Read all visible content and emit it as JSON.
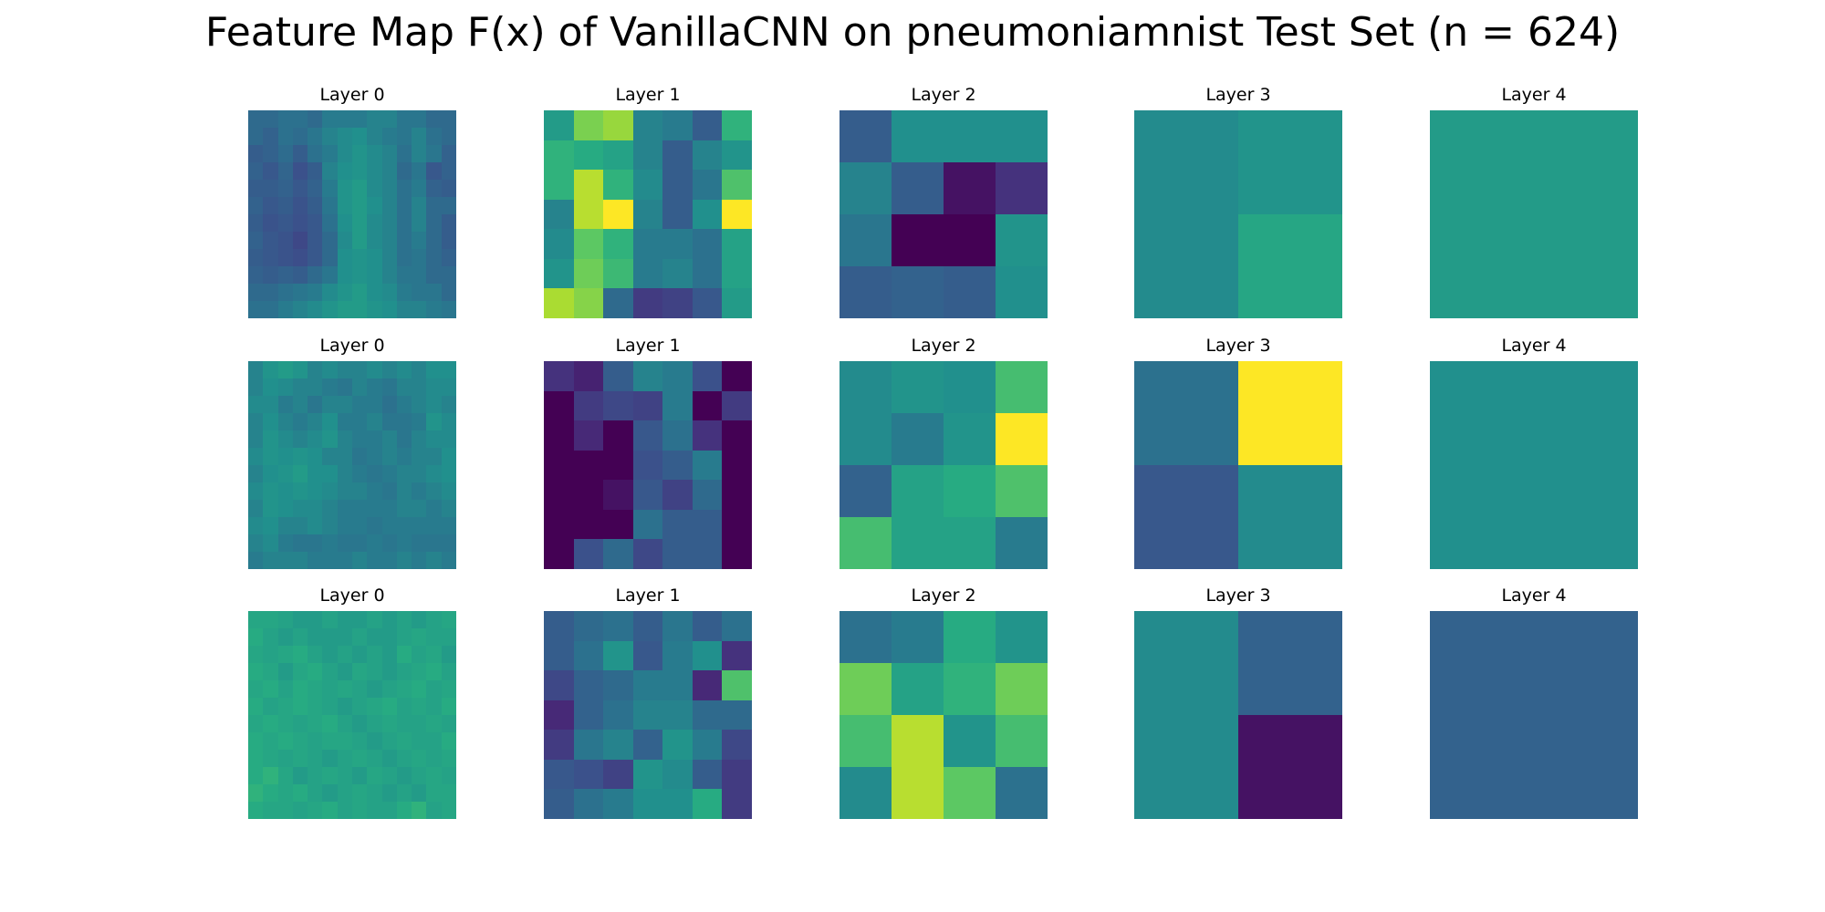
{
  "title": "Feature Map F(x) of VanillaCNN on pneumoniamnist Test Set (n = 624)",
  "chart_data": {
    "type": "heatmap",
    "title": "Feature Map F(x) of VanillaCNN on pneumoniamnist Test Set (n = 624)",
    "colormap": "viridis",
    "rows": [
      {
        "panels": [
          {
            "title": "Layer 0",
            "values": [
              [
                0.35,
                0.35,
                0.38,
                0.38,
                0.35,
                0.42,
                0.42,
                0.42,
                0.45,
                0.45,
                0.4,
                0.4,
                0.35,
                0.35
              ],
              [
                0.35,
                0.32,
                0.38,
                0.36,
                0.4,
                0.45,
                0.48,
                0.5,
                0.45,
                0.42,
                0.4,
                0.45,
                0.38,
                0.35
              ],
              [
                0.3,
                0.32,
                0.36,
                0.3,
                0.38,
                0.42,
                0.48,
                0.52,
                0.48,
                0.45,
                0.38,
                0.45,
                0.4,
                0.32
              ],
              [
                0.32,
                0.28,
                0.33,
                0.25,
                0.3,
                0.45,
                0.5,
                0.52,
                0.48,
                0.45,
                0.35,
                0.4,
                0.28,
                0.32
              ],
              [
                0.3,
                0.3,
                0.32,
                0.28,
                0.32,
                0.42,
                0.52,
                0.55,
                0.48,
                0.45,
                0.38,
                0.42,
                0.32,
                0.3
              ],
              [
                0.32,
                0.28,
                0.3,
                0.26,
                0.3,
                0.4,
                0.52,
                0.55,
                0.5,
                0.45,
                0.38,
                0.45,
                0.35,
                0.35
              ],
              [
                0.3,
                0.26,
                0.28,
                0.25,
                0.28,
                0.38,
                0.5,
                0.55,
                0.48,
                0.45,
                0.38,
                0.45,
                0.35,
                0.3
              ],
              [
                0.32,
                0.28,
                0.26,
                0.22,
                0.28,
                0.35,
                0.48,
                0.55,
                0.48,
                0.45,
                0.38,
                0.42,
                0.35,
                0.3
              ],
              [
                0.3,
                0.28,
                0.26,
                0.24,
                0.28,
                0.35,
                0.5,
                0.52,
                0.5,
                0.45,
                0.38,
                0.4,
                0.35,
                0.32
              ],
              [
                0.32,
                0.3,
                0.32,
                0.3,
                0.35,
                0.4,
                0.5,
                0.52,
                0.5,
                0.45,
                0.4,
                0.4,
                0.35,
                0.35
              ],
              [
                0.35,
                0.35,
                0.38,
                0.4,
                0.42,
                0.48,
                0.52,
                0.55,
                0.5,
                0.48,
                0.42,
                0.4,
                0.4,
                0.35
              ],
              [
                0.38,
                0.38,
                0.42,
                0.45,
                0.48,
                0.52,
                0.55,
                0.55,
                0.52,
                0.5,
                0.45,
                0.45,
                0.42,
                0.4
              ]
            ]
          },
          {
            "title": "Layer 1",
            "values": [
              [
                0.55,
                0.8,
                0.85,
                0.45,
                0.42,
                0.3,
                0.65
              ],
              [
                0.65,
                0.62,
                0.58,
                0.45,
                0.3,
                0.45,
                0.52
              ],
              [
                0.65,
                0.9,
                0.65,
                0.48,
                0.3,
                0.4,
                0.72
              ],
              [
                0.45,
                0.9,
                1.0,
                0.45,
                0.3,
                0.5,
                1.0
              ],
              [
                0.48,
                0.75,
                0.65,
                0.42,
                0.42,
                0.38,
                0.58
              ],
              [
                0.52,
                0.78,
                0.68,
                0.42,
                0.45,
                0.38,
                0.58
              ],
              [
                0.88,
                0.82,
                0.35,
                0.18,
                0.2,
                0.28,
                0.55
              ]
            ]
          },
          {
            "title": "Layer 2",
            "values": [
              [
                0.3,
                0.5,
                0.5,
                0.5
              ],
              [
                0.45,
                0.3,
                0.05,
                0.15
              ],
              [
                0.4,
                0.0,
                0.0,
                0.52
              ],
              [
                0.3,
                0.32,
                0.3,
                0.5
              ]
            ]
          },
          {
            "title": "Layer 3",
            "values": [
              [
                0.48,
                0.52
              ],
              [
                0.48,
                0.6
              ]
            ]
          },
          {
            "title": "Layer 4",
            "values": [
              [
                0.55
              ]
            ]
          }
        ]
      },
      {
        "panels": [
          {
            "title": "Layer 0",
            "values": [
              [
                0.45,
                0.52,
                0.55,
                0.52,
                0.45,
                0.48,
                0.45,
                0.45,
                0.48,
                0.45,
                0.48,
                0.45,
                0.5,
                0.5
              ],
              [
                0.45,
                0.5,
                0.48,
                0.45,
                0.45,
                0.42,
                0.4,
                0.45,
                0.42,
                0.4,
                0.45,
                0.45,
                0.48,
                0.48
              ],
              [
                0.48,
                0.48,
                0.42,
                0.45,
                0.4,
                0.45,
                0.45,
                0.42,
                0.42,
                0.38,
                0.42,
                0.45,
                0.48,
                0.45
              ],
              [
                0.45,
                0.5,
                0.45,
                0.42,
                0.45,
                0.5,
                0.42,
                0.42,
                0.45,
                0.4,
                0.4,
                0.42,
                0.52,
                0.48
              ],
              [
                0.45,
                0.52,
                0.48,
                0.45,
                0.48,
                0.52,
                0.45,
                0.42,
                0.42,
                0.45,
                0.4,
                0.45,
                0.48,
                0.48
              ],
              [
                0.48,
                0.52,
                0.5,
                0.52,
                0.5,
                0.45,
                0.45,
                0.4,
                0.42,
                0.45,
                0.42,
                0.45,
                0.45,
                0.5
              ],
              [
                0.45,
                0.5,
                0.52,
                0.55,
                0.5,
                0.5,
                0.45,
                0.42,
                0.4,
                0.42,
                0.45,
                0.45,
                0.48,
                0.5
              ],
              [
                0.48,
                0.52,
                0.5,
                0.52,
                0.5,
                0.48,
                0.45,
                0.45,
                0.42,
                0.4,
                0.45,
                0.42,
                0.45,
                0.48
              ],
              [
                0.45,
                0.52,
                0.5,
                0.48,
                0.48,
                0.45,
                0.42,
                0.42,
                0.42,
                0.42,
                0.45,
                0.45,
                0.42,
                0.45
              ],
              [
                0.48,
                0.5,
                0.45,
                0.45,
                0.48,
                0.45,
                0.42,
                0.42,
                0.4,
                0.42,
                0.42,
                0.42,
                0.42,
                0.42
              ],
              [
                0.45,
                0.48,
                0.42,
                0.4,
                0.4,
                0.42,
                0.4,
                0.4,
                0.42,
                0.4,
                0.42,
                0.4,
                0.4,
                0.4
              ],
              [
                0.42,
                0.45,
                0.45,
                0.45,
                0.42,
                0.42,
                0.42,
                0.45,
                0.42,
                0.42,
                0.45,
                0.42,
                0.45,
                0.42
              ]
            ]
          },
          {
            "title": "Layer 1",
            "values": [
              [
                0.15,
                0.1,
                0.3,
                0.45,
                0.42,
                0.25,
                0.0
              ],
              [
                0.0,
                0.18,
                0.22,
                0.2,
                0.42,
                0.0,
                0.18
              ],
              [
                0.0,
                0.12,
                0.0,
                0.28,
                0.38,
                0.15,
                0.0
              ],
              [
                0.0,
                0.0,
                0.0,
                0.25,
                0.3,
                0.42,
                0.0
              ],
              [
                0.0,
                0.0,
                0.05,
                0.28,
                0.2,
                0.35,
                0.0
              ],
              [
                0.0,
                0.0,
                0.0,
                0.38,
                0.3,
                0.3,
                0.0
              ],
              [
                0.0,
                0.25,
                0.35,
                0.22,
                0.3,
                0.3,
                0.0
              ]
            ]
          },
          {
            "title": "Layer 2",
            "values": [
              [
                0.48,
                0.52,
                0.5,
                0.7
              ],
              [
                0.48,
                0.42,
                0.52,
                1.0
              ],
              [
                0.32,
                0.58,
                0.62,
                0.72
              ],
              [
                0.7,
                0.58,
                0.58,
                0.42
              ]
            ]
          },
          {
            "title": "Layer 3",
            "values": [
              [
                0.38,
                1.0
              ],
              [
                0.28,
                0.48
              ]
            ]
          },
          {
            "title": "Layer 4",
            "values": [
              [
                0.5
              ]
            ]
          }
        ]
      },
      {
        "panels": [
          {
            "title": "Layer 0",
            "values": [
              [
                0.6,
                0.6,
                0.58,
                0.55,
                0.55,
                0.58,
                0.55,
                0.55,
                0.58,
                0.55,
                0.58,
                0.55,
                0.58,
                0.6
              ],
              [
                0.62,
                0.58,
                0.55,
                0.58,
                0.55,
                0.55,
                0.55,
                0.58,
                0.55,
                0.55,
                0.58,
                0.6,
                0.58,
                0.58
              ],
              [
                0.6,
                0.58,
                0.6,
                0.62,
                0.58,
                0.55,
                0.58,
                0.55,
                0.58,
                0.55,
                0.62,
                0.58,
                0.6,
                0.55
              ],
              [
                0.62,
                0.6,
                0.55,
                0.6,
                0.62,
                0.58,
                0.55,
                0.6,
                0.58,
                0.55,
                0.58,
                0.6,
                0.62,
                0.58
              ],
              [
                0.6,
                0.62,
                0.58,
                0.62,
                0.6,
                0.58,
                0.6,
                0.58,
                0.55,
                0.58,
                0.6,
                0.62,
                0.58,
                0.6
              ],
              [
                0.62,
                0.58,
                0.6,
                0.62,
                0.6,
                0.58,
                0.55,
                0.58,
                0.6,
                0.62,
                0.58,
                0.6,
                0.58,
                0.62
              ],
              [
                0.6,
                0.62,
                0.6,
                0.58,
                0.6,
                0.62,
                0.58,
                0.55,
                0.58,
                0.6,
                0.58,
                0.58,
                0.6,
                0.58
              ],
              [
                0.62,
                0.6,
                0.62,
                0.6,
                0.58,
                0.6,
                0.6,
                0.58,
                0.55,
                0.58,
                0.6,
                0.58,
                0.58,
                0.62
              ],
              [
                0.62,
                0.6,
                0.58,
                0.6,
                0.58,
                0.55,
                0.58,
                0.6,
                0.58,
                0.55,
                0.58,
                0.6,
                0.58,
                0.6
              ],
              [
                0.62,
                0.65,
                0.6,
                0.55,
                0.58,
                0.6,
                0.58,
                0.55,
                0.6,
                0.58,
                0.55,
                0.58,
                0.6,
                0.58
              ],
              [
                0.65,
                0.62,
                0.6,
                0.62,
                0.58,
                0.55,
                0.58,
                0.6,
                0.58,
                0.55,
                0.58,
                0.55,
                0.6,
                0.6
              ],
              [
                0.62,
                0.6,
                0.6,
                0.58,
                0.6,
                0.62,
                0.58,
                0.6,
                0.58,
                0.58,
                0.62,
                0.65,
                0.58,
                0.6
              ]
            ]
          },
          {
            "title": "Layer 1",
            "values": [
              [
                0.3,
                0.35,
                0.38,
                0.3,
                0.4,
                0.3,
                0.38
              ],
              [
                0.3,
                0.38,
                0.52,
                0.28,
                0.42,
                0.5,
                0.15
              ],
              [
                0.22,
                0.32,
                0.35,
                0.42,
                0.42,
                0.12,
                0.72
              ],
              [
                0.12,
                0.32,
                0.38,
                0.45,
                0.45,
                0.35,
                0.35
              ],
              [
                0.18,
                0.4,
                0.45,
                0.32,
                0.52,
                0.42,
                0.22
              ],
              [
                0.28,
                0.25,
                0.2,
                0.52,
                0.48,
                0.3,
                0.18
              ],
              [
                0.3,
                0.38,
                0.42,
                0.5,
                0.5,
                0.62,
                0.18
              ]
            ]
          },
          {
            "title": "Layer 2",
            "values": [
              [
                0.38,
                0.42,
                0.62,
                0.52
              ],
              [
                0.78,
                0.58,
                0.65,
                0.78
              ],
              [
                0.7,
                0.9,
                0.52,
                0.7
              ],
              [
                0.48,
                0.9,
                0.75,
                0.38
              ]
            ]
          },
          {
            "title": "Layer 3",
            "values": [
              [
                0.48,
                0.32
              ],
              [
                0.48,
                0.05
              ]
            ]
          },
          {
            "title": "Layer 4",
            "values": [
              [
                0.32
              ]
            ]
          }
        ]
      }
    ],
    "grid": false,
    "axes": "off",
    "legend": "none"
  }
}
